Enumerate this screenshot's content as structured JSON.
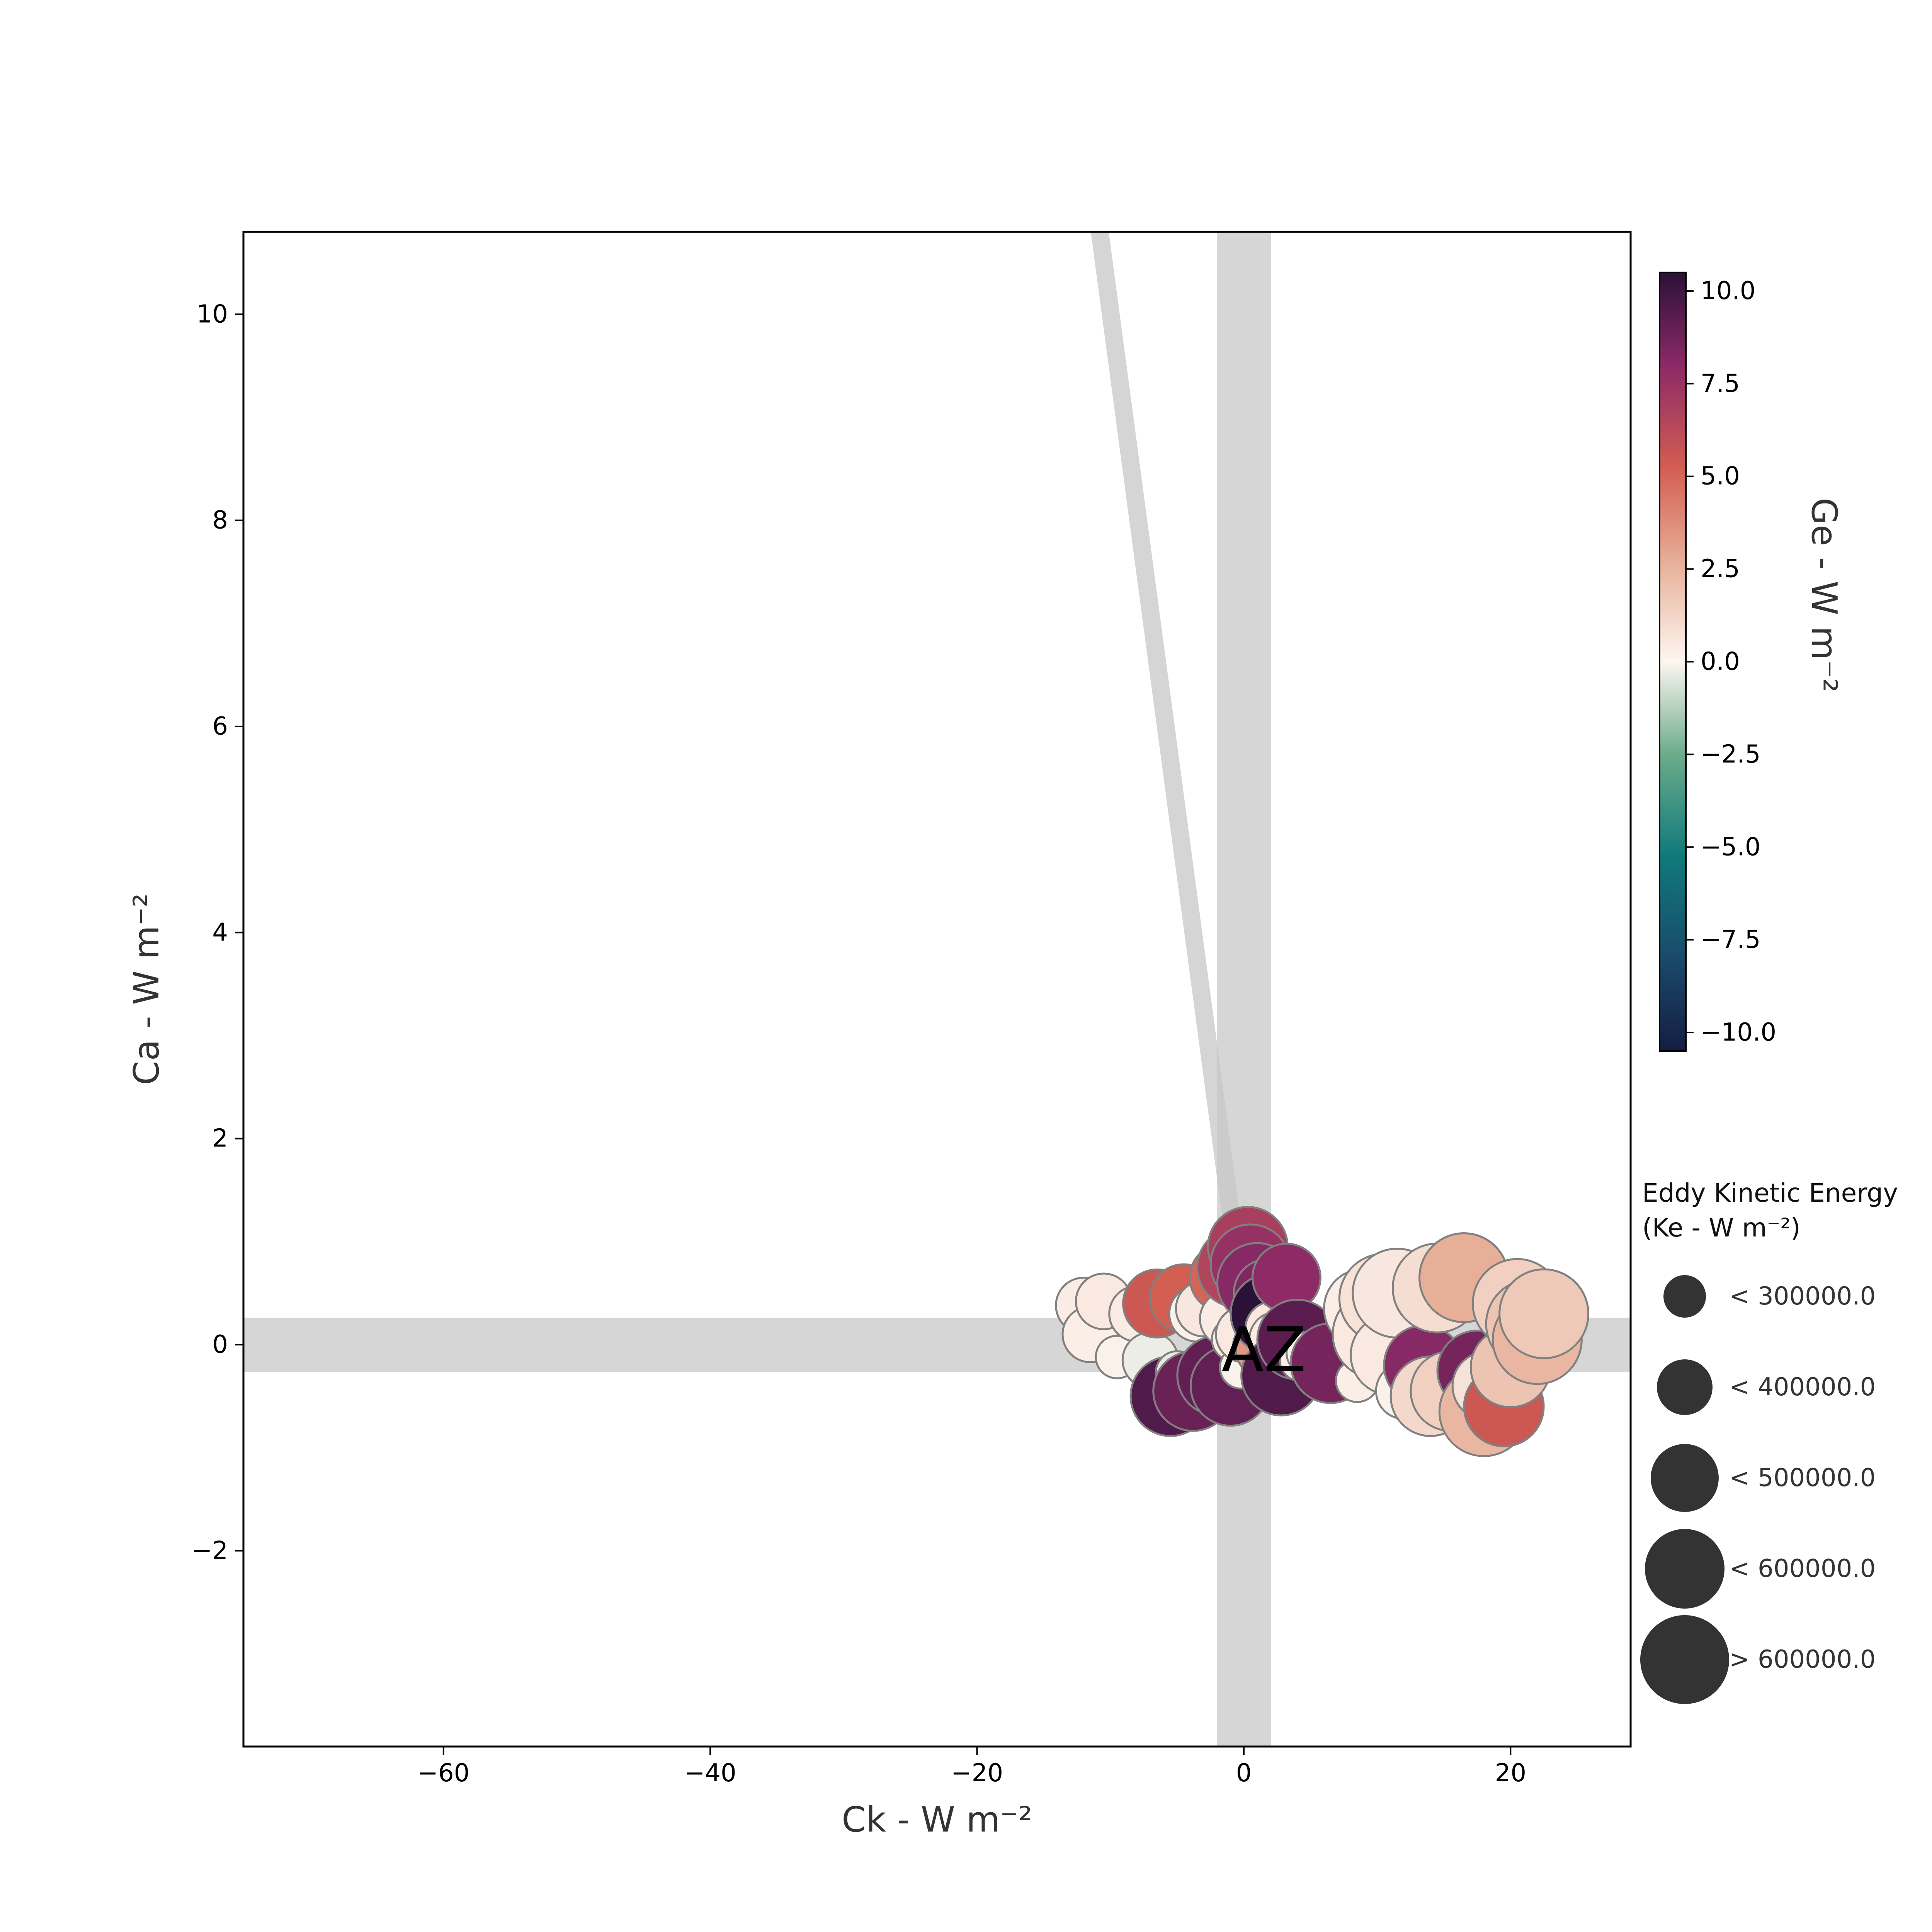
{
  "chart_data": {
    "type": "scatter",
    "title": "",
    "xlabel": "Ck - W m⁻²",
    "ylabel": "Ca - W m⁻²",
    "xlim": [
      -75,
      29
    ],
    "ylim": [
      -3.9,
      10.8
    ],
    "xticks": [
      -60,
      -40,
      -20,
      0,
      20
    ],
    "xtick_labels": [
      "−60",
      "−40",
      "−20",
      "0",
      "20"
    ],
    "yticks": [
      -2,
      0,
      2,
      4,
      6,
      8,
      10
    ],
    "ytick_labels": [
      "−2",
      "0",
      "2",
      "4",
      "6",
      "8",
      "10"
    ],
    "grid": false,
    "reference_bands": {
      "vertical_at_x": 0,
      "horizontal_at_y": 0,
      "trend_line": [
        [
          -10.8,
          10.8
        ],
        [
          -0.8,
          1.1
        ]
      ]
    },
    "annotation": "AZ",
    "annotation_at": [
      1.5,
      -0.05
    ],
    "colorbar": {
      "label": "Ge - W m⁻²",
      "range": [
        -10.5,
        10.5
      ],
      "ticks": [
        10.0,
        7.5,
        5.0,
        2.5,
        0.0,
        -2.5,
        -5.0,
        -7.5,
        -10.0
      ],
      "tick_labels": [
        "10.0",
        "7.5",
        "5.0",
        "2.5",
        "0.0",
        "−2.5",
        "−5.0",
        "−7.5",
        "−10.0"
      ]
    },
    "size_legend": {
      "title_line1": "Eddy Kinetic Energy",
      "title_line2": "(Ke - W m⁻²)",
      "entries": [
        "< 300000.0",
        "< 400000.0",
        "< 500000.0",
        "< 600000.0",
        "> 600000.0"
      ]
    },
    "points": [
      {
        "x": -12.0,
        "y": 0.38,
        "ge": 0.4,
        "ke": 320000
      },
      {
        "x": -11.5,
        "y": 0.1,
        "ge": 0.3,
        "ke": 330000
      },
      {
        "x": -10.5,
        "y": 0.42,
        "ge": 0.5,
        "ke": 340000
      },
      {
        "x": -9.5,
        "y": -0.12,
        "ge": 0.2,
        "ke": 280000
      },
      {
        "x": -8.0,
        "y": 0.3,
        "ge": 0.4,
        "ke": 340000
      },
      {
        "x": -7.0,
        "y": -0.15,
        "ge": -0.3,
        "ke": 300000
      },
      {
        "x": -6.5,
        "y": 0.4,
        "ge": 5.5,
        "ke": 400000
      },
      {
        "x": -5.5,
        "y": -0.5,
        "ge": 9.5,
        "ke": 560000
      },
      {
        "x": -5.0,
        "y": -0.27,
        "ge": -0.4,
        "ke": 290000
      },
      {
        "x": -4.5,
        "y": 0.45,
        "ge": 5.2,
        "ke": 420000
      },
      {
        "x": -3.8,
        "y": -0.45,
        "ge": 8.8,
        "ke": 580000
      },
      {
        "x": -3.5,
        "y": 0.3,
        "ge": 0.2,
        "ke": 350000
      },
      {
        "x": -3.0,
        "y": 0.35,
        "ge": 0.6,
        "ke": 380000
      },
      {
        "x": -2.8,
        "y": -0.3,
        "ge": 0.3,
        "ke": 290000
      },
      {
        "x": -2.0,
        "y": -0.3,
        "ge": 9.0,
        "ke": 560000
      },
      {
        "x": -1.5,
        "y": 0.65,
        "ge": 5.0,
        "ke": 420000
      },
      {
        "x": -1.2,
        "y": 0.25,
        "ge": 0.4,
        "ke": 300000
      },
      {
        "x": -1.0,
        "y": -0.4,
        "ge": 9.0,
        "ke": 560000
      },
      {
        "x": -0.8,
        "y": 0.05,
        "ge": 0.3,
        "ke": 290000
      },
      {
        "x": -0.5,
        "y": 0.75,
        "ge": 6.5,
        "ke": 500000
      },
      {
        "x": -0.2,
        "y": -0.22,
        "ge": 0.2,
        "ke": 290000
      },
      {
        "x": 0.0,
        "y": 0.1,
        "ge": 0.5,
        "ke": 300000
      },
      {
        "x": 0.3,
        "y": 0.95,
        "ge": 6.8,
        "ke": 500000
      },
      {
        "x": 0.5,
        "y": 0.78,
        "ge": 7.5,
        "ke": 500000
      },
      {
        "x": 0.8,
        "y": 0.0,
        "ge": 0.4,
        "ke": 290000
      },
      {
        "x": 1.0,
        "y": 0.6,
        "ge": 8.0,
        "ke": 500000
      },
      {
        "x": 1.2,
        "y": 0.25,
        "ge": 0.4,
        "ke": 300000
      },
      {
        "x": 1.5,
        "y": -0.05,
        "ge": 3.5,
        "ke": 300000
      },
      {
        "x": 1.8,
        "y": 0.5,
        "ge": 8.2,
        "ke": 480000
      },
      {
        "x": 2.0,
        "y": 0.3,
        "ge": 10.5,
        "ke": 500000
      },
      {
        "x": 2.2,
        "y": 0.15,
        "ge": 0.5,
        "ke": 300000
      },
      {
        "x": 2.5,
        "y": 0.05,
        "ge": 0.4,
        "ke": 300000
      },
      {
        "x": 2.8,
        "y": -0.3,
        "ge": 9.5,
        "ke": 560000
      },
      {
        "x": 3.2,
        "y": 0.65,
        "ge": 7.8,
        "ke": 480000
      },
      {
        "x": 3.5,
        "y": -0.08,
        "ge": 0.3,
        "ke": 290000
      },
      {
        "x": 4.0,
        "y": 0.05,
        "ge": 9.2,
        "ke": 500000
      },
      {
        "x": 4.3,
        "y": -0.15,
        "ge": 0.4,
        "ke": 290000
      },
      {
        "x": 4.8,
        "y": -0.08,
        "ge": 0.2,
        "ke": 290000
      },
      {
        "x": 5.5,
        "y": -0.1,
        "ge": 0.3,
        "ke": 290000
      },
      {
        "x": 6.5,
        "y": -0.18,
        "ge": 8.5,
        "ke": 520000
      },
      {
        "x": 8.5,
        "y": -0.35,
        "ge": 0.3,
        "ke": 290000
      },
      {
        "x": 9.0,
        "y": 0.35,
        "ge": 0.3,
        "ke": 560000
      },
      {
        "x": 10.0,
        "y": 0.1,
        "ge": 0.5,
        "ke": 620000
      },
      {
        "x": 10.5,
        "y": 0.45,
        "ge": 0.8,
        "ke": 600000
      },
      {
        "x": 11.0,
        "y": -0.1,
        "ge": 0.5,
        "ke": 560000
      },
      {
        "x": 11.5,
        "y": 0.5,
        "ge": 0.6,
        "ke": 640000
      },
      {
        "x": 12.0,
        "y": -0.45,
        "ge": 0.2,
        "ke": 330000
      },
      {
        "x": 13.5,
        "y": -0.2,
        "ge": 8.0,
        "ke": 500000
      },
      {
        "x": 14.0,
        "y": -0.5,
        "ge": 1.2,
        "ke": 560000
      },
      {
        "x": 14.5,
        "y": 0.55,
        "ge": 1.0,
        "ke": 620000
      },
      {
        "x": 15.5,
        "y": -0.45,
        "ge": 1.5,
        "ke": 500000
      },
      {
        "x": 16.5,
        "y": 0.65,
        "ge": 2.8,
        "ke": 640000
      },
      {
        "x": 17.5,
        "y": -0.25,
        "ge": 8.5,
        "ke": 500000
      },
      {
        "x": 18.0,
        "y": -0.65,
        "ge": 2.5,
        "ke": 620000
      },
      {
        "x": 18.2,
        "y": -0.4,
        "ge": 0.8,
        "ke": 450000
      },
      {
        "x": 19.5,
        "y": -0.6,
        "ge": 5.5,
        "ke": 500000
      },
      {
        "x": 20.0,
        "y": -0.22,
        "ge": 2.0,
        "ke": 500000
      },
      {
        "x": 20.5,
        "y": 0.4,
        "ge": 1.5,
        "ke": 620000
      },
      {
        "x": 21.5,
        "y": 0.2,
        "ge": 2.0,
        "ke": 620000
      },
      {
        "x": 22.0,
        "y": 0.05,
        "ge": 2.5,
        "ke": 600000
      },
      {
        "x": 22.5,
        "y": 0.3,
        "ge": 1.8,
        "ke": 620000
      }
    ]
  }
}
